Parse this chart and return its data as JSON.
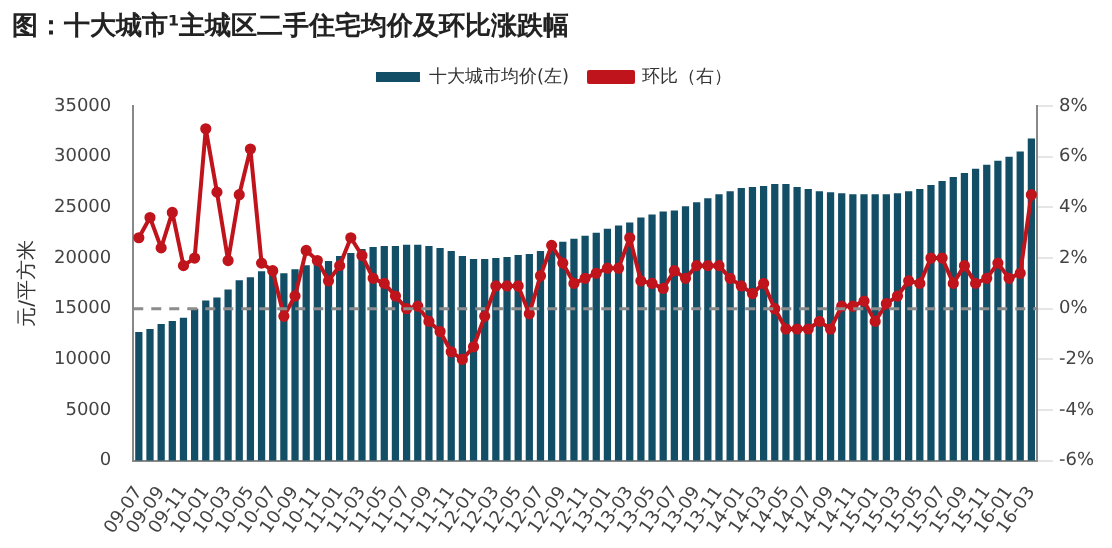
{
  "chart_data": {
    "type": "bar",
    "title": "图：十大城市¹主城区二手住宅均价及环比涨跌幅",
    "ylabel": "元/平方米",
    "categories": [
      "09-07",
      null,
      "09-09",
      null,
      "09-11",
      null,
      "10-01",
      null,
      "10-03",
      null,
      "10-05",
      null,
      "10-07",
      null,
      "10-09",
      null,
      "10-11",
      null,
      "11-01",
      null,
      "11-03",
      null,
      "11-05",
      null,
      "11-07",
      null,
      "11-09",
      null,
      "11-11",
      null,
      "12-01",
      null,
      "12-03",
      null,
      "12-05",
      null,
      "12-07",
      null,
      "12-09",
      null,
      "12-11",
      null,
      "13-01",
      null,
      "13-03",
      null,
      "13-05",
      null,
      "13-07",
      null,
      "13-09",
      null,
      "13-11",
      null,
      "14-01",
      null,
      "14-03",
      null,
      "14-05",
      null,
      "14-07",
      null,
      "14-09",
      null,
      "14-11",
      null,
      "15-01",
      null,
      "15-03",
      null,
      "15-05",
      null,
      "15-07",
      null,
      "15-09",
      null,
      "15-11",
      null,
      "16-01",
      null,
      "16-03"
    ],
    "series": [
      {
        "name": "十大城市均价(左)",
        "color": "#124e66",
        "values": [
          12700,
          13000,
          13500,
          13800,
          14100,
          15000,
          15800,
          16100,
          16900,
          17800,
          18100,
          18700,
          18400,
          18500,
          18900,
          19300,
          19500,
          19700,
          20200,
          20500,
          20900,
          21100,
          21200,
          21200,
          21300,
          21300,
          21200,
          21000,
          20700,
          20200,
          19900,
          19900,
          20000,
          20100,
          20300,
          20400,
          20700,
          21100,
          21600,
          21900,
          22200,
          22500,
          22900,
          23200,
          23500,
          24000,
          24300,
          24600,
          24700,
          25100,
          25500,
          25900,
          26300,
          26600,
          26900,
          27000,
          27100,
          27300,
          27300,
          27000,
          26800,
          26600,
          26500,
          26400,
          26300,
          26300,
          26300,
          26300,
          26400,
          26600,
          26800,
          27200,
          27600,
          28000,
          28400,
          28800,
          29200,
          29600,
          30000,
          30500,
          31800
        ]
      },
      {
        "name": "环比（右）",
        "type": "line",
        "axis": "y2",
        "color": "#c0141c",
        "values": [
          2.8,
          3.6,
          2.4,
          3.8,
          1.7,
          2.0,
          7.1,
          4.6,
          1.9,
          4.5,
          6.3,
          1.8,
          1.5,
          -0.3,
          0.5,
          2.3,
          1.9,
          1.1,
          1.7,
          2.8,
          2.1,
          1.2,
          1.0,
          0.5,
          0.0,
          0.1,
          -0.5,
          -0.9,
          -1.7,
          -2.0,
          -1.5,
          -0.3,
          0.9,
          0.9,
          0.9,
          -0.2,
          1.3,
          2.5,
          1.8,
          1.0,
          1.2,
          1.4,
          1.6,
          1.6,
          2.8,
          1.1,
          1.0,
          0.8,
          1.5,
          1.2,
          1.7,
          1.7,
          1.7,
          1.2,
          0.9,
          0.6,
          1.0,
          0.0,
          -0.8,
          -0.8,
          -0.8,
          -0.5,
          -0.8,
          0.1,
          0.1,
          0.3,
          -0.5,
          0.2,
          0.5,
          1.1,
          1.0,
          2.0,
          2.0,
          1.0,
          1.7,
          1.0,
          1.2,
          1.8,
          1.2,
          1.4,
          4.5
        ]
      }
    ],
    "ylim": [
      0,
      35000
    ],
    "yticks": [
      0,
      5000,
      10000,
      15000,
      20000,
      25000,
      30000,
      35000
    ],
    "y2lim": [
      -6,
      8
    ],
    "y2ticks": [
      {
        "value": -6,
        "label": "-6%"
      },
      {
        "value": -4,
        "label": "-4%"
      },
      {
        "value": -2,
        "label": "-2%"
      },
      {
        "value": 0,
        "label": "0%"
      },
      {
        "value": 2,
        "label": "2%"
      },
      {
        "value": 4,
        "label": "4%"
      },
      {
        "value": 6,
        "label": "6%"
      },
      {
        "value": 8,
        "label": "8%"
      }
    ],
    "ref_lines": [
      {
        "axis": "y2",
        "value": 0,
        "color": "#8c8c8c",
        "line_style": "dashed"
      }
    ],
    "legend": "top",
    "marker": "circle",
    "grid": false
  }
}
